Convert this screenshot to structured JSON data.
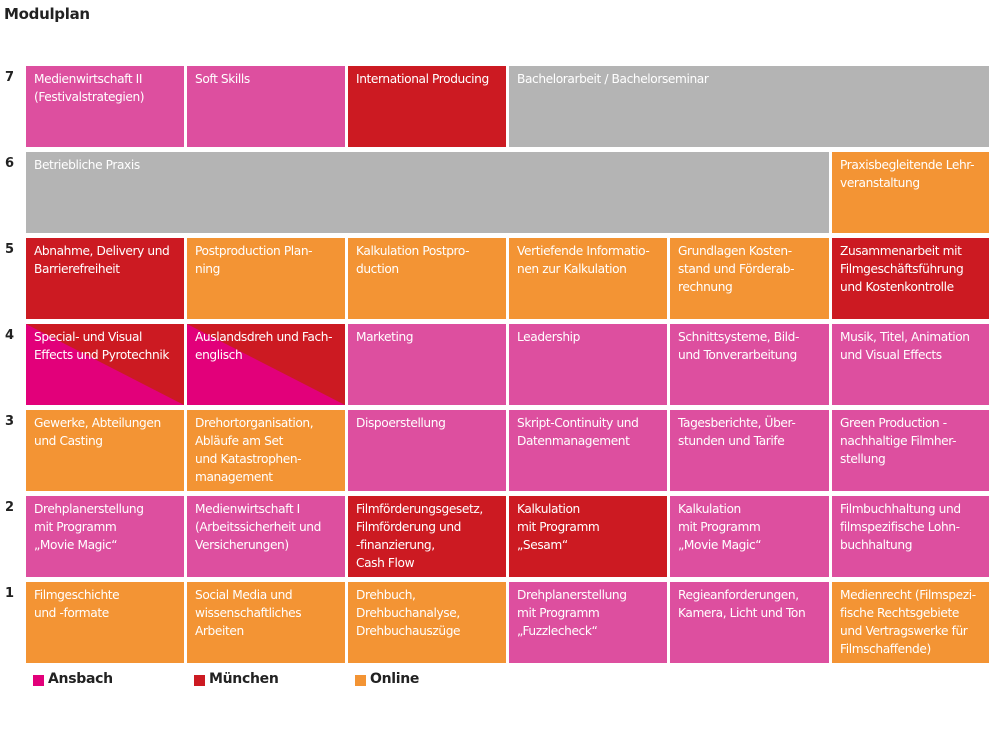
{
  "title": "Modulplan",
  "colors": {
    "ansbach": "#dd4f9f",
    "ansbach_split": "#e2007a",
    "muenchen": "#cc1a22",
    "online": "#f39434",
    "gray": "#b4b4b4"
  },
  "row_labels": [
    "7",
    "6",
    "5",
    "4",
    "3",
    "2",
    "1"
  ],
  "rows": {
    "r7": [
      {
        "text": "Medienwirtschaft II\n(Festivalstrategien)",
        "location": "Ansbach"
      },
      {
        "text": "Soft Skills",
        "location": "Ansbach"
      },
      {
        "text": "International Producing",
        "location": "München"
      },
      {
        "text": "Bachelorarbeit / Bachelorseminar",
        "location": "none"
      }
    ],
    "r6": [
      {
        "text": "Betriebliche Praxis",
        "location": "none"
      },
      {
        "text": "Praxisbegleitende Lehr-\nveranstaltung",
        "location": "Online"
      }
    ],
    "r5": [
      {
        "text": "Abnahme, Delivery und\nBarrierefreiheit",
        "location": "München"
      },
      {
        "text": "Postproduction Plan-\nning",
        "location": "Online"
      },
      {
        "text": "Kalkulation Postpro-\nduction",
        "location": "Online"
      },
      {
        "text": "Vertiefende Informatio-\nnen zur Kalkulation",
        "location": "Online"
      },
      {
        "text": "Grundlagen Kosten-\nstand und Förderab-\nrechnung",
        "location": "Online"
      },
      {
        "text": "Zusammenarbeit mit\nFilmgeschäftsführung\nund Kostenkontrolle",
        "location": "München"
      }
    ],
    "r4": [
      {
        "text": "Special- und Visual\nEffects und Pyrotechnik",
        "location": "Ansbach / München"
      },
      {
        "text": "Auslandsdreh und Fach-\nenglisch",
        "location": "Ansbach / München"
      },
      {
        "text": "Marketing",
        "location": "Ansbach"
      },
      {
        "text": "Leadership",
        "location": "Ansbach"
      },
      {
        "text": "Schnittsysteme, Bild-\nund Tonverarbeitung",
        "location": "Ansbach"
      },
      {
        "text": "Musik, Titel, Animation\nund Visual Effects",
        "location": "Ansbach"
      }
    ],
    "r3": [
      {
        "text": "Gewerke, Abteilungen\nund Casting",
        "location": "Online"
      },
      {
        "text": "Drehortorganisation,\nAbläufe am Set\nund Katastrophen-\nmanagement",
        "location": "Online"
      },
      {
        "text": "Dispoerstellung",
        "location": "Ansbach"
      },
      {
        "text": "Skript-Continuity und\nDatenmanagement",
        "location": "Ansbach"
      },
      {
        "text": "Tagesberichte, Über-\nstunden und Tarife",
        "location": "Ansbach"
      },
      {
        "text": "Green Production -\nnachhaltige Filmher-\nstellung",
        "location": "Ansbach"
      }
    ],
    "r2": [
      {
        "text": "Drehplanerstellung\nmit Programm\n„Movie Magic“",
        "location": "Ansbach"
      },
      {
        "text": "Medienwirtschaft I\n(Arbeitssicherheit und\nVersicherungen)",
        "location": "Ansbach"
      },
      {
        "text": "Filmförderungsgesetz,\nFilmförderung und\n-finanzierung,\nCash Flow",
        "location": "München"
      },
      {
        "text": "Kalkulation\nmit Programm\n„Sesam“",
        "location": "München"
      },
      {
        "text": "Kalkulation\nmit Programm\n„Movie Magic“",
        "location": "Ansbach"
      },
      {
        "text": "Filmbuchhaltung und\nfilmspezifische Lohn-\nbuchhaltung",
        "location": "Ansbach"
      }
    ],
    "r1": [
      {
        "text": "Filmgeschichte\nund -formate",
        "location": "Online"
      },
      {
        "text": "Social Media und\nwissenschaftliches\nArbeiten",
        "location": "Online"
      },
      {
        "text": "Drehbuch,\nDrehbuchanalyse,\nDrehbuchauszüge",
        "location": "Online"
      },
      {
        "text": "Drehplanerstellung\nmit Programm\n„Fuzzlecheck“",
        "location": "Ansbach"
      },
      {
        "text": "Regieanforderungen,\nKamera, Licht und Ton",
        "location": "Ansbach"
      },
      {
        "text": "Medienrecht (Filmspezi-\nfische Rechtsgebiete\nund Vertragswerke für\nFilmschaffende)",
        "location": "Online"
      }
    ]
  },
  "legend": [
    {
      "label": "Ansbach",
      "color": "#e2007a"
    },
    {
      "label": "München",
      "color": "#cc1a22"
    },
    {
      "label": "Online",
      "color": "#f39434"
    }
  ]
}
